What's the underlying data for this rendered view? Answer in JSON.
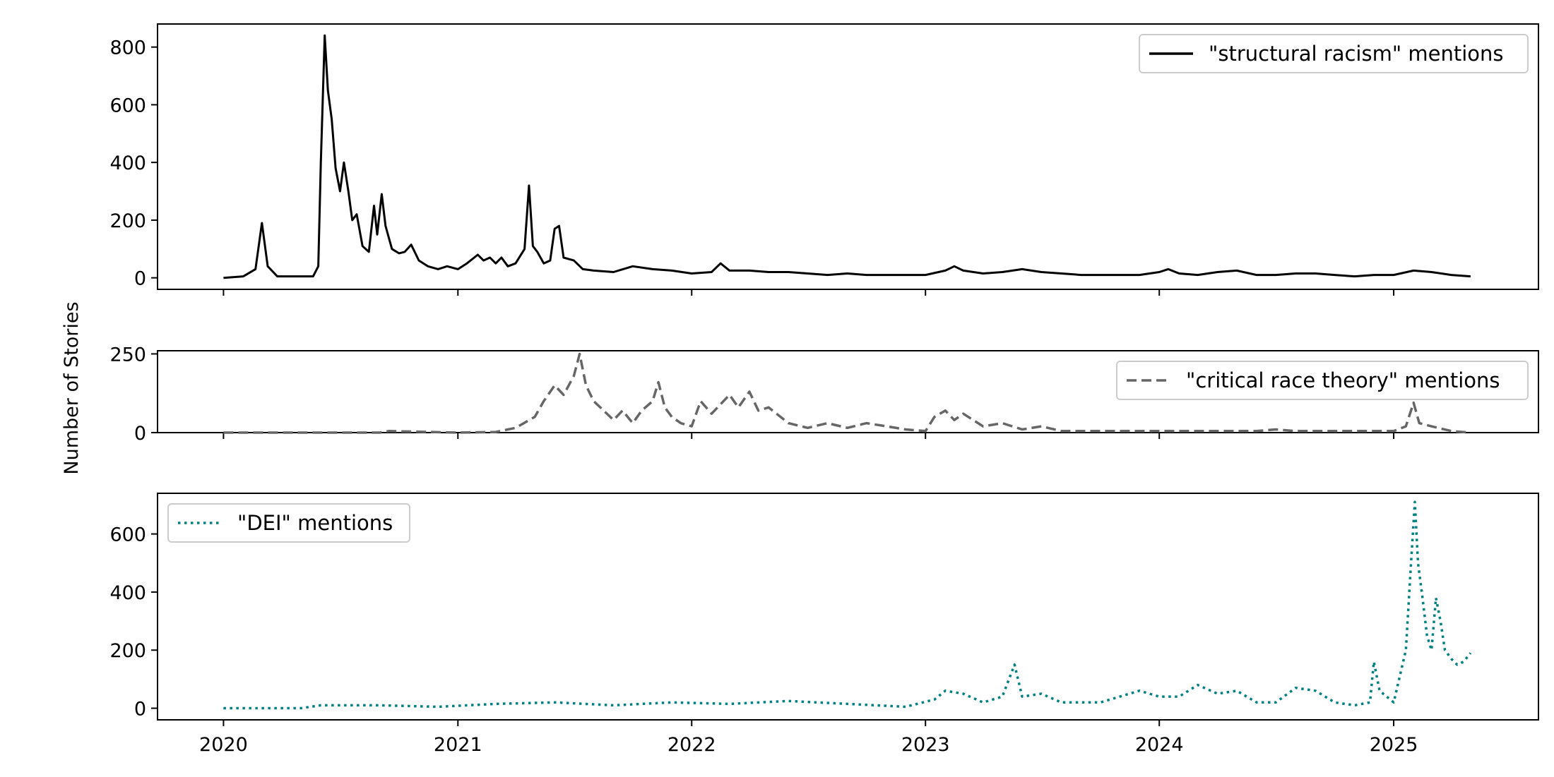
{
  "figure": {
    "ylabel": "Number of Stories",
    "shared_x_ticks": [
      "2020",
      "2021",
      "2022",
      "2023",
      "2024",
      "2025"
    ]
  },
  "chart_data": [
    {
      "type": "line",
      "series": [
        {
          "name": "\"structural racism\" mentions",
          "color": "#000000",
          "style": "solid",
          "points": [
            [
              "2020-01-01",
              0
            ],
            [
              "2020-02-01",
              5
            ],
            [
              "2020-02-20",
              30
            ],
            [
              "2020-03-01",
              190
            ],
            [
              "2020-03-10",
              40
            ],
            [
              "2020-03-25",
              5
            ],
            [
              "2020-04-30",
              5
            ],
            [
              "2020-05-20",
              5
            ],
            [
              "2020-05-28",
              40
            ],
            [
              "2020-06-01",
              400
            ],
            [
              "2020-06-07",
              840
            ],
            [
              "2020-06-12",
              650
            ],
            [
              "2020-06-18",
              550
            ],
            [
              "2020-06-24",
              380
            ],
            [
              "2020-07-01",
              300
            ],
            [
              "2020-07-07",
              400
            ],
            [
              "2020-07-14",
              300
            ],
            [
              "2020-07-20",
              200
            ],
            [
              "2020-07-27",
              220
            ],
            [
              "2020-08-05",
              110
            ],
            [
              "2020-08-15",
              90
            ],
            [
              "2020-08-23",
              250
            ],
            [
              "2020-08-28",
              150
            ],
            [
              "2020-09-04",
              290
            ],
            [
              "2020-09-10",
              180
            ],
            [
              "2020-09-20",
              100
            ],
            [
              "2020-10-01",
              85
            ],
            [
              "2020-10-10",
              90
            ],
            [
              "2020-10-20",
              115
            ],
            [
              "2020-11-01",
              60
            ],
            [
              "2020-11-15",
              40
            ],
            [
              "2020-12-01",
              30
            ],
            [
              "2020-12-15",
              40
            ],
            [
              "2021-01-01",
              30
            ],
            [
              "2021-01-15",
              50
            ],
            [
              "2021-02-01",
              80
            ],
            [
              "2021-02-10",
              60
            ],
            [
              "2021-02-20",
              70
            ],
            [
              "2021-03-01",
              50
            ],
            [
              "2021-03-10",
              70
            ],
            [
              "2021-03-20",
              40
            ],
            [
              "2021-04-01",
              50
            ],
            [
              "2021-04-15",
              100
            ],
            [
              "2021-04-22",
              320
            ],
            [
              "2021-04-28",
              110
            ],
            [
              "2021-05-05",
              90
            ],
            [
              "2021-05-15",
              50
            ],
            [
              "2021-05-25",
              60
            ],
            [
              "2021-06-01",
              170
            ],
            [
              "2021-06-08",
              180
            ],
            [
              "2021-06-15",
              70
            ],
            [
              "2021-07-01",
              60
            ],
            [
              "2021-07-15",
              30
            ],
            [
              "2021-08-01",
              25
            ],
            [
              "2021-09-01",
              20
            ],
            [
              "2021-10-01",
              40
            ],
            [
              "2021-11-01",
              30
            ],
            [
              "2021-12-01",
              25
            ],
            [
              "2022-01-01",
              15
            ],
            [
              "2022-02-01",
              20
            ],
            [
              "2022-02-15",
              50
            ],
            [
              "2022-03-01",
              25
            ],
            [
              "2022-04-01",
              25
            ],
            [
              "2022-05-01",
              20
            ],
            [
              "2022-06-01",
              20
            ],
            [
              "2022-07-01",
              15
            ],
            [
              "2022-08-01",
              10
            ],
            [
              "2022-09-01",
              15
            ],
            [
              "2022-10-01",
              10
            ],
            [
              "2022-11-01",
              10
            ],
            [
              "2022-12-01",
              10
            ],
            [
              "2023-01-01",
              10
            ],
            [
              "2023-02-01",
              25
            ],
            [
              "2023-02-15",
              40
            ],
            [
              "2023-03-01",
              25
            ],
            [
              "2023-04-01",
              15
            ],
            [
              "2023-05-01",
              20
            ],
            [
              "2023-06-01",
              30
            ],
            [
              "2023-07-01",
              20
            ],
            [
              "2023-08-01",
              15
            ],
            [
              "2023-09-01",
              10
            ],
            [
              "2023-10-01",
              10
            ],
            [
              "2023-11-01",
              10
            ],
            [
              "2023-12-01",
              10
            ],
            [
              "2024-01-01",
              20
            ],
            [
              "2024-01-15",
              30
            ],
            [
              "2024-02-01",
              15
            ],
            [
              "2024-03-01",
              10
            ],
            [
              "2024-04-01",
              20
            ],
            [
              "2024-05-01",
              25
            ],
            [
              "2024-06-01",
              10
            ],
            [
              "2024-07-01",
              10
            ],
            [
              "2024-08-01",
              15
            ],
            [
              "2024-09-01",
              15
            ],
            [
              "2024-10-01",
              10
            ],
            [
              "2024-11-01",
              5
            ],
            [
              "2024-12-01",
              10
            ],
            [
              "2025-01-01",
              10
            ],
            [
              "2025-02-01",
              25
            ],
            [
              "2025-03-01",
              20
            ],
            [
              "2025-04-01",
              10
            ],
            [
              "2025-05-01",
              5
            ]
          ]
        }
      ],
      "x_range": [
        "2019-09-20",
        "2025-08-15"
      ],
      "ylim": [
        -40,
        880
      ],
      "y_ticks": [
        0,
        200,
        400,
        600,
        800
      ],
      "legend": "top-right"
    },
    {
      "type": "line",
      "series": [
        {
          "name": "\"critical race theory\" mentions",
          "color": "#666666",
          "style": "dashed",
          "points": [
            [
              "2020-01-01",
              0
            ],
            [
              "2020-09-01",
              0
            ],
            [
              "2020-09-15",
              5
            ],
            [
              "2021-01-01",
              0
            ],
            [
              "2021-03-01",
              2
            ],
            [
              "2021-04-01",
              15
            ],
            [
              "2021-05-01",
              50
            ],
            [
              "2021-05-15",
              100
            ],
            [
              "2021-06-01",
              150
            ],
            [
              "2021-06-15",
              120
            ],
            [
              "2021-07-01",
              180
            ],
            [
              "2021-07-10",
              250
            ],
            [
              "2021-07-20",
              150
            ],
            [
              "2021-08-01",
              100
            ],
            [
              "2021-09-01",
              40
            ],
            [
              "2021-09-15",
              70
            ],
            [
              "2021-10-01",
              30
            ],
            [
              "2021-10-15",
              70
            ],
            [
              "2021-11-01",
              100
            ],
            [
              "2021-11-10",
              160
            ],
            [
              "2021-11-20",
              80
            ],
            [
              "2021-12-01",
              50
            ],
            [
              "2021-12-15",
              30
            ],
            [
              "2022-01-01",
              20
            ],
            [
              "2022-01-15",
              100
            ],
            [
              "2022-02-01",
              60
            ],
            [
              "2022-02-15",
              90
            ],
            [
              "2022-03-01",
              120
            ],
            [
              "2022-03-15",
              80
            ],
            [
              "2022-04-01",
              130
            ],
            [
              "2022-04-15",
              70
            ],
            [
              "2022-05-01",
              80
            ],
            [
              "2022-06-01",
              30
            ],
            [
              "2022-07-01",
              15
            ],
            [
              "2022-08-01",
              30
            ],
            [
              "2022-09-01",
              15
            ],
            [
              "2022-10-01",
              30
            ],
            [
              "2022-11-01",
              20
            ],
            [
              "2022-12-01",
              10
            ],
            [
              "2023-01-01",
              5
            ],
            [
              "2023-01-15",
              50
            ],
            [
              "2023-02-01",
              70
            ],
            [
              "2023-02-15",
              40
            ],
            [
              "2023-03-01",
              60
            ],
            [
              "2023-04-01",
              20
            ],
            [
              "2023-05-01",
              30
            ],
            [
              "2023-06-01",
              10
            ],
            [
              "2023-07-01",
              20
            ],
            [
              "2023-08-01",
              5
            ],
            [
              "2023-09-01",
              5
            ],
            [
              "2023-12-01",
              5
            ],
            [
              "2024-06-01",
              5
            ],
            [
              "2024-07-01",
              10
            ],
            [
              "2024-08-01",
              5
            ],
            [
              "2024-12-01",
              5
            ],
            [
              "2025-01-01",
              5
            ],
            [
              "2025-01-20",
              20
            ],
            [
              "2025-02-01",
              95
            ],
            [
              "2025-02-10",
              30
            ],
            [
              "2025-03-01",
              20
            ],
            [
              "2025-04-01",
              5
            ],
            [
              "2025-05-01",
              0
            ]
          ]
        }
      ],
      "x_range": [
        "2019-09-20",
        "2025-08-15"
      ],
      "ylim": [
        0,
        260
      ],
      "y_ticks": [
        0,
        250
      ],
      "legend": "top-right"
    },
    {
      "type": "line",
      "series": [
        {
          "name": "\"DEI\" mentions",
          "color": "#008080",
          "style": "dotted",
          "points": [
            [
              "2020-01-01",
              0
            ],
            [
              "2020-05-01",
              0
            ],
            [
              "2020-06-01",
              10
            ],
            [
              "2020-09-01",
              10
            ],
            [
              "2020-12-01",
              5
            ],
            [
              "2021-03-01",
              15
            ],
            [
              "2021-06-01",
              20
            ],
            [
              "2021-09-01",
              10
            ],
            [
              "2021-12-01",
              20
            ],
            [
              "2022-03-01",
              15
            ],
            [
              "2022-06-01",
              25
            ],
            [
              "2022-09-01",
              15
            ],
            [
              "2022-12-01",
              5
            ],
            [
              "2023-01-15",
              30
            ],
            [
              "2023-02-01",
              60
            ],
            [
              "2023-03-01",
              50
            ],
            [
              "2023-04-01",
              20
            ],
            [
              "2023-05-01",
              40
            ],
            [
              "2023-05-20",
              150
            ],
            [
              "2023-06-01",
              40
            ],
            [
              "2023-07-01",
              50
            ],
            [
              "2023-08-01",
              20
            ],
            [
              "2023-10-01",
              20
            ],
            [
              "2023-12-01",
              60
            ],
            [
              "2024-01-01",
              40
            ],
            [
              "2024-02-01",
              40
            ],
            [
              "2024-03-01",
              80
            ],
            [
              "2024-04-01",
              50
            ],
            [
              "2024-05-01",
              60
            ],
            [
              "2024-06-01",
              20
            ],
            [
              "2024-07-01",
              20
            ],
            [
              "2024-08-01",
              70
            ],
            [
              "2024-09-01",
              60
            ],
            [
              "2024-10-01",
              20
            ],
            [
              "2024-11-01",
              10
            ],
            [
              "2024-11-25",
              20
            ],
            [
              "2024-12-01",
              160
            ],
            [
              "2024-12-10",
              60
            ],
            [
              "2025-01-01",
              20
            ],
            [
              "2025-01-20",
              200
            ],
            [
              "2025-01-28",
              500
            ],
            [
              "2025-02-03",
              710
            ],
            [
              "2025-02-08",
              500
            ],
            [
              "2025-02-15",
              380
            ],
            [
              "2025-02-22",
              250
            ],
            [
              "2025-03-01",
              200
            ],
            [
              "2025-03-08",
              380
            ],
            [
              "2025-03-15",
              300
            ],
            [
              "2025-03-22",
              200
            ],
            [
              "2025-04-01",
              170
            ],
            [
              "2025-04-10",
              150
            ],
            [
              "2025-04-20",
              160
            ],
            [
              "2025-05-01",
              190
            ]
          ]
        }
      ],
      "x_range": [
        "2019-09-20",
        "2025-08-15"
      ],
      "ylim": [
        -40,
        740
      ],
      "y_ticks": [
        0,
        200,
        400,
        600
      ],
      "legend": "top-left"
    }
  ]
}
